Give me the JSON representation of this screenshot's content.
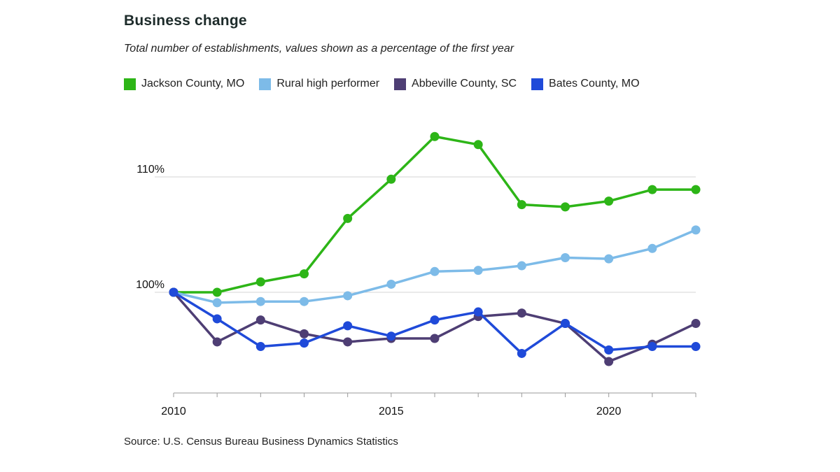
{
  "title": "Business change",
  "subtitle": "Total number of establishments, values shown as a percentage of the first year",
  "source": "Source: U.S. Census Bureau Business Dynamics Statistics",
  "legend": [
    {
      "label": "Jackson County, MO",
      "color": "#2db517"
    },
    {
      "label": "Rural high performer",
      "color": "#7dbbe8"
    },
    {
      "label": "Abbeville County, SC",
      "color": "#4e3e74"
    },
    {
      "label": "Bates County, MO",
      "color": "#1f4ad9"
    }
  ],
  "chart_data": {
    "type": "line",
    "title": "Business change",
    "subtitle": "Total number of establishments, values shown as a percentage of the first year",
    "xlabel": "",
    "ylabel": "",
    "x": [
      2010,
      2011,
      2012,
      2013,
      2014,
      2015,
      2016,
      2017,
      2018,
      2019,
      2020,
      2021,
      2022
    ],
    "xticks": [
      2010,
      2015,
      2020
    ],
    "xtick_labels": [
      "2010",
      "2015",
      "2020"
    ],
    "yticks": [
      100,
      110
    ],
    "ytick_labels": [
      "100%",
      "110%"
    ],
    "ylim": [
      91.5,
      116
    ],
    "xlim": [
      2010,
      2022
    ],
    "grid": true,
    "legend_position": "top",
    "series": [
      {
        "name": "Jackson County, MO",
        "color": "#2db517",
        "values": [
          100,
          100,
          100.9,
          101.6,
          106.4,
          109.8,
          113.5,
          112.8,
          107.6,
          107.4,
          107.9,
          108.9,
          108.9
        ]
      },
      {
        "name": "Rural high performer",
        "color": "#7dbbe8",
        "values": [
          100,
          99.1,
          99.2,
          99.2,
          99.7,
          100.7,
          101.8,
          101.9,
          102.3,
          103.0,
          102.9,
          103.8,
          105.4
        ]
      },
      {
        "name": "Abbeville County, SC",
        "color": "#4e3e74",
        "values": [
          100,
          95.7,
          97.6,
          96.4,
          95.7,
          96.0,
          96.0,
          97.9,
          98.2,
          97.3,
          94.0,
          95.5,
          97.3
        ]
      },
      {
        "name": "Bates County, MO",
        "color": "#1f4ad9",
        "values": [
          100,
          97.7,
          95.3,
          95.6,
          97.1,
          96.2,
          97.6,
          98.3,
          94.7,
          97.3,
          95.0,
          95.3,
          95.3
        ]
      }
    ]
  }
}
